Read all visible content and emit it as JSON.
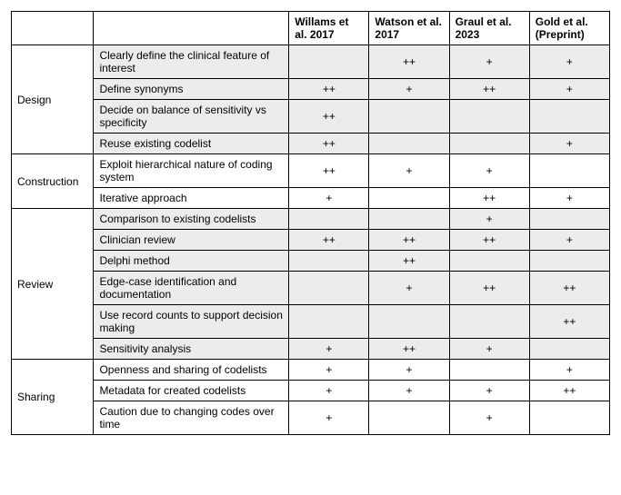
{
  "columns": {
    "cat": "",
    "crit": "",
    "studies": [
      "Willams et al. 2017",
      "Watson et al. 2017",
      "Graul et al. 2023",
      "Gold et al. (Preprint)"
    ]
  },
  "sections": [
    {
      "name": "Design",
      "shaded": true,
      "rows": [
        {
          "label": "Clearly define the clinical feature of interest",
          "vals": [
            "",
            "++",
            "+",
            "+"
          ]
        },
        {
          "label": "Define synonyms",
          "vals": [
            "++",
            "+",
            "++",
            "+"
          ]
        },
        {
          "label": "Decide on balance of sensitivity vs specificity",
          "vals": [
            "++",
            "",
            "",
            ""
          ]
        },
        {
          "label": "Reuse existing codelist",
          "vals": [
            "++",
            "",
            "",
            "+"
          ]
        }
      ]
    },
    {
      "name": "Construction",
      "shaded": false,
      "rows": [
        {
          "label": "Exploit hierarchical nature of coding system",
          "vals": [
            "++",
            "+",
            "+",
            ""
          ]
        },
        {
          "label": "Iterative approach",
          "vals": [
            "+",
            "",
            "++",
            "+"
          ]
        }
      ]
    },
    {
      "name": "Review",
      "shaded": true,
      "rows": [
        {
          "label": "Comparison to existing codelists",
          "vals": [
            "",
            "",
            "+",
            ""
          ]
        },
        {
          "label": "Clinician review",
          "vals": [
            "++",
            "++",
            "++",
            "+"
          ]
        },
        {
          "label": "Delphi method",
          "vals": [
            "",
            "++",
            "",
            ""
          ]
        },
        {
          "label": "Edge-case identification and documentation",
          "vals": [
            "",
            "+",
            "++",
            "++"
          ]
        },
        {
          "label": "Use record counts to support decision making",
          "vals": [
            "",
            "",
            "",
            "++"
          ]
        },
        {
          "label": "Sensitivity analysis",
          "vals": [
            "+",
            "++",
            "+",
            ""
          ]
        }
      ]
    },
    {
      "name": "Sharing",
      "shaded": false,
      "rows": [
        {
          "label": "Openness and sharing of codelists",
          "vals": [
            "+",
            "+",
            "",
            "+"
          ]
        },
        {
          "label": "Metadata for created codelists",
          "vals": [
            "+",
            "+",
            "+",
            "++"
          ]
        },
        {
          "label": "Caution due to changing codes over time",
          "vals": [
            "+",
            "",
            "+",
            ""
          ]
        }
      ]
    }
  ]
}
